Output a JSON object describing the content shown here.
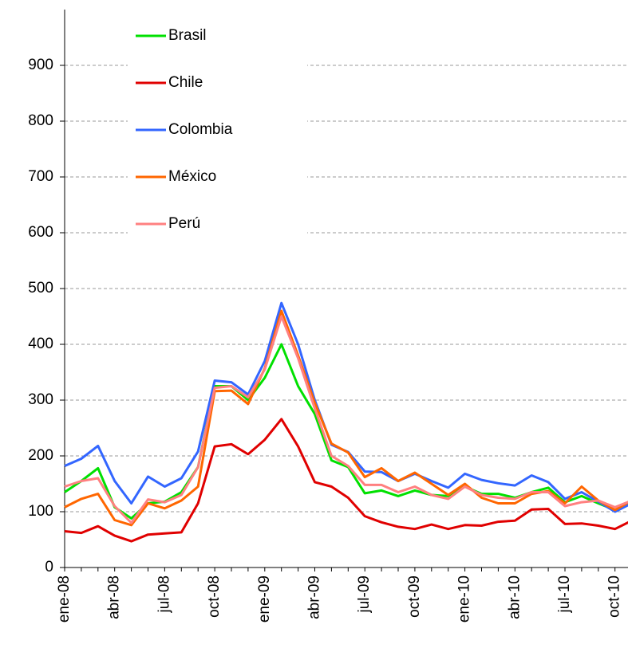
{
  "chart_data": {
    "type": "line",
    "categories": [
      "ene-08",
      null,
      null,
      "abr-08",
      null,
      null,
      "jul-08",
      null,
      null,
      "oct-08",
      null,
      null,
      "ene-09",
      null,
      null,
      "abr-09",
      null,
      null,
      "jul-09",
      null,
      null,
      "oct-09",
      null,
      null,
      "ene-10",
      null,
      null,
      "abr-10",
      null,
      null,
      "jul-10",
      null,
      null,
      "oct-10",
      null
    ],
    "series": [
      {
        "name": "Brasil",
        "color": "#00e000",
        "values": [
          135,
          155,
          178,
          108,
          88,
          115,
          118,
          135,
          180,
          325,
          325,
          300,
          340,
          400,
          325,
          275,
          192,
          180,
          133,
          138,
          128,
          138,
          130,
          128,
          145,
          132,
          132,
          125,
          135,
          143,
          117,
          128,
          115,
          103,
          115
        ]
      },
      {
        "name": "Chile",
        "color": "#e00000",
        "values": [
          65,
          62,
          74,
          57,
          47,
          59,
          61,
          63,
          115,
          217,
          221,
          203,
          229,
          266,
          217,
          153,
          145,
          125,
          92,
          81,
          73,
          69,
          77,
          69,
          76,
          75,
          82,
          84,
          104,
          105,
          78,
          79,
          75,
          69,
          84
        ]
      },
      {
        "name": "Colombia",
        "color": "#3366ff",
        "values": [
          182,
          195,
          218,
          155,
          115,
          163,
          145,
          160,
          208,
          335,
          332,
          310,
          370,
          474,
          400,
          300,
          220,
          207,
          172,
          171,
          155,
          168,
          155,
          143,
          168,
          157,
          151,
          147,
          165,
          153,
          123,
          135,
          118,
          100,
          115
        ]
      },
      {
        "name": "México",
        "color": "#ff6600",
        "values": [
          108,
          123,
          132,
          85,
          76,
          115,
          106,
          120,
          145,
          316,
          317,
          293,
          357,
          460,
          380,
          295,
          222,
          206,
          162,
          178,
          155,
          170,
          150,
          130,
          150,
          125,
          115,
          115,
          132,
          137,
          115,
          145,
          120,
          103,
          120
        ]
      },
      {
        "name": "Perú",
        "color": "#ff8080",
        "values": [
          145,
          155,
          160,
          110,
          80,
          122,
          117,
          130,
          180,
          322,
          325,
          305,
          355,
          450,
          375,
          285,
          200,
          182,
          148,
          148,
          135,
          145,
          130,
          123,
          145,
          130,
          125,
          123,
          135,
          135,
          110,
          117,
          120,
          108,
          120
        ]
      }
    ],
    "ylim": [
      0,
      1000
    ],
    "yticks": [
      0,
      100,
      200,
      300,
      400,
      500,
      600,
      700,
      800,
      900
    ],
    "grid": true
  }
}
